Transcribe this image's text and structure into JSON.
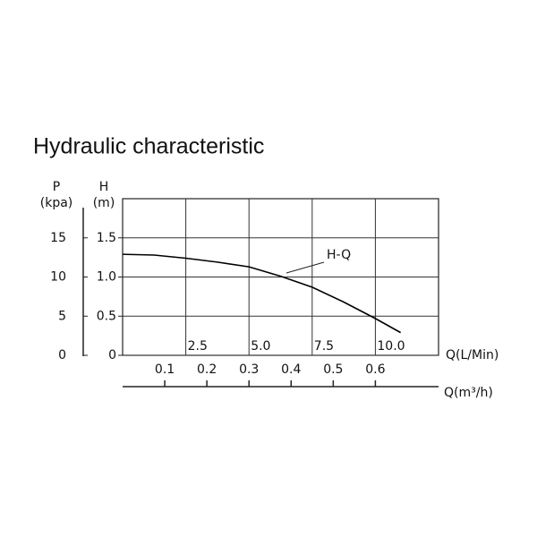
{
  "chart_data": {
    "type": "line",
    "title": "Hydraulic characteristic",
    "x": [
      0,
      1.25,
      2.5,
      3.75,
      5,
      6.25,
      7.5,
      8.75,
      10,
      11
    ],
    "series": [
      {
        "name": "H-Q",
        "color": "#000000",
        "values": [
          1.29,
          1.28,
          1.24,
          1.19,
          1.13,
          1.01,
          0.87,
          0.68,
          0.47,
          0.29
        ]
      }
    ],
    "xlabel": "Q(L/Min)",
    "xlim": [
      0,
      12.5
    ],
    "xticks": [
      2.5,
      {
        "value": 5,
        "label": "5.0"
      },
      7.5,
      {
        "value": 10,
        "label": "10.0"
      }
    ],
    "x2label": "Q(m³/h)",
    "x2lim": [
      0,
      0.75
    ],
    "x2ticks": [
      0.1,
      0.2,
      0.3,
      0.4,
      0.5,
      0.6
    ],
    "ylabel": "H",
    "yunit": "(m)",
    "ylim": [
      0,
      2
    ],
    "yticks": [
      0,
      0.5,
      {
        "value": 1,
        "label": "1.0"
      },
      1.5
    ],
    "y2label": "P",
    "y2unit": "(kpa)",
    "y2lim": [
      0,
      20
    ],
    "y2ticks": [
      0,
      5,
      10,
      15
    ],
    "grid": true
  }
}
